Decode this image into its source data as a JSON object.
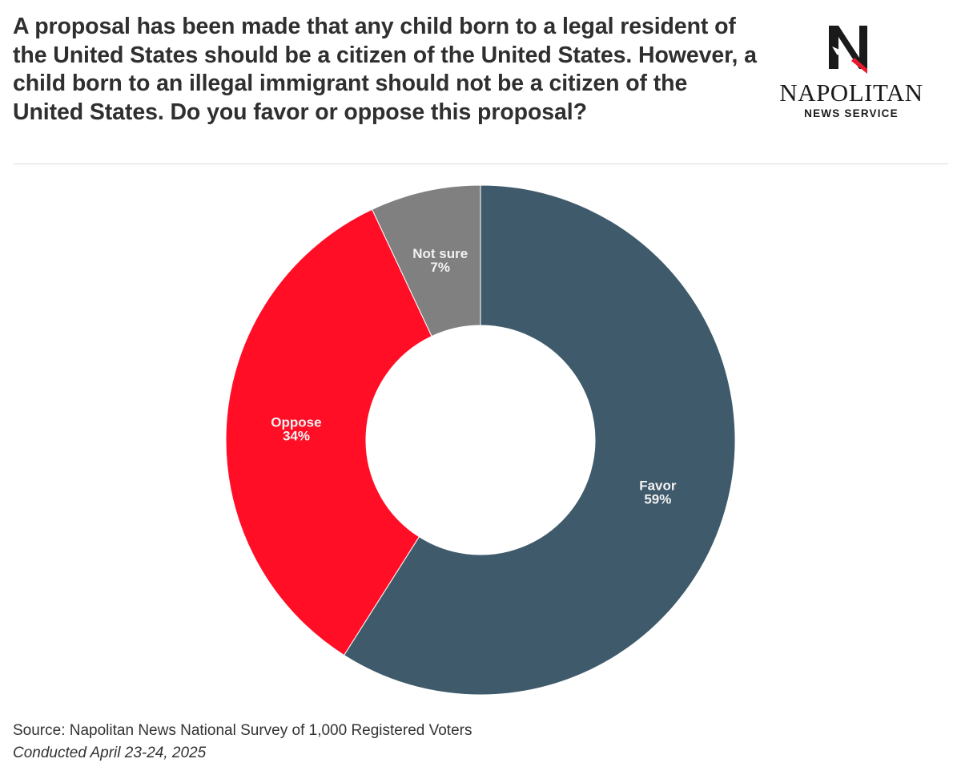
{
  "header": {
    "question": "A proposal has been made that any child born to a legal resident of the United States should be a citizen of the United States. However, a child born to an illegal immigrant should not be a citizen of the United States. Do you favor or oppose this proposal?"
  },
  "logo": {
    "name": "NAPOLITAN",
    "subtitle": "NEWS SERVICE",
    "icon": "napolitan-n-eagle-icon",
    "colors": {
      "primary": "#1a1a1a",
      "accent": "#e8192c"
    }
  },
  "footer": {
    "source": "Source: Napolitan News National Survey of 1,000 Registered Voters",
    "conducted": "Conducted April 23-24, 2025"
  },
  "chart_data": {
    "type": "pie",
    "style": "donut",
    "title": "",
    "legend": "none",
    "slices": [
      {
        "label": "Favor",
        "value": 59,
        "value_label": "59%",
        "color": "#3f5a6b"
      },
      {
        "label": "Oppose",
        "value": 34,
        "value_label": "34%",
        "color": "#ff0e26"
      },
      {
        "label": "Not sure",
        "value": 7,
        "value_label": "7%",
        "color": "#808080"
      }
    ]
  }
}
